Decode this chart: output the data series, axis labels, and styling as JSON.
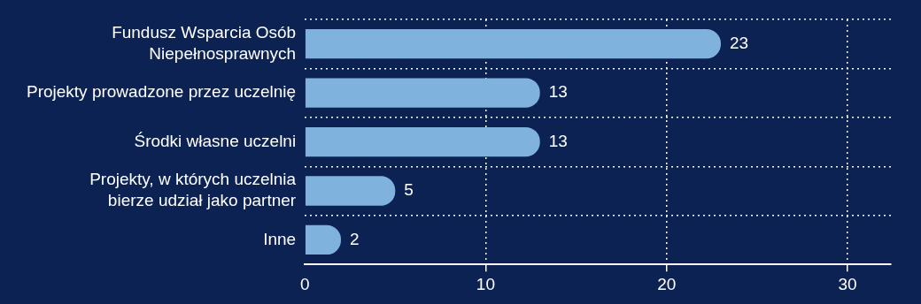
{
  "chart_data": {
    "type": "bar",
    "orientation": "horizontal",
    "categories": [
      "Fundusz Wsparcia Osób Niepełnosprawnych",
      "Projekty prowadzone przez uczelnię",
      "Środki własne uczelni",
      "Projekty, w których uczelnia bierze udział jako partner",
      "Inne"
    ],
    "values": [
      23,
      13,
      13,
      5,
      2
    ],
    "color": "#7fb2dc",
    "xlim": [
      0,
      32.4
    ],
    "xticks": [
      0,
      10,
      20,
      30
    ],
    "grid": true,
    "data_labels": true,
    "legend": false
  }
}
